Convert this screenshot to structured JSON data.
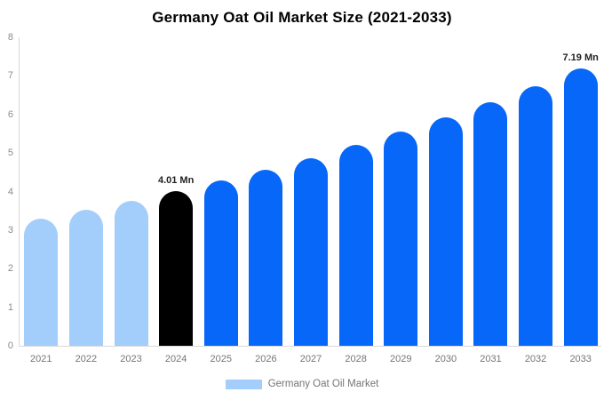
{
  "title": "Germany Oat Oil Market Size (2021-2033)",
  "legend": {
    "label": "Germany Oat Oil Market",
    "swatch_color": "#a3cdfa"
  },
  "colors": {
    "bar_historical": "#a3cdfa",
    "bar_highlight": "#000000",
    "bar_forecast": "#0667f8",
    "axis_line": "#d9d9d9",
    "tick_label": "#8c8c8c",
    "x_label": "#757575",
    "value_label": "#222222",
    "title": "#000000",
    "background": "#ffffff"
  },
  "chart_data": {
    "type": "bar",
    "title": "Germany Oat Oil Market Size (2021-2033)",
    "xlabel": "",
    "ylabel": "",
    "unit": "Mn",
    "categories": [
      "2021",
      "2022",
      "2023",
      "2024",
      "2025",
      "2026",
      "2027",
      "2028",
      "2029",
      "2030",
      "2031",
      "2032",
      "2033"
    ],
    "values": [
      3.3,
      3.52,
      3.76,
      4.01,
      4.28,
      4.57,
      4.87,
      5.2,
      5.55,
      5.92,
      6.31,
      6.74,
      7.19
    ],
    "bar_colors": [
      "#a3cdfa",
      "#a3cdfa",
      "#a3cdfa",
      "#000000",
      "#0667f8",
      "#0667f8",
      "#0667f8",
      "#0667f8",
      "#0667f8",
      "#0667f8",
      "#0667f8",
      "#0667f8",
      "#0667f8"
    ],
    "ylim": [
      0,
      8
    ],
    "yticks": [
      0,
      1,
      2,
      3,
      4,
      5,
      6,
      7,
      8
    ],
    "grid": false,
    "legend_entries": [
      "Germany Oat Oil Market"
    ],
    "legend_position": "bottom",
    "annotations": [
      {
        "category": "2024",
        "text": "4.01 Mn"
      },
      {
        "category": "2033",
        "text": "7.19 Mn"
      }
    ]
  }
}
